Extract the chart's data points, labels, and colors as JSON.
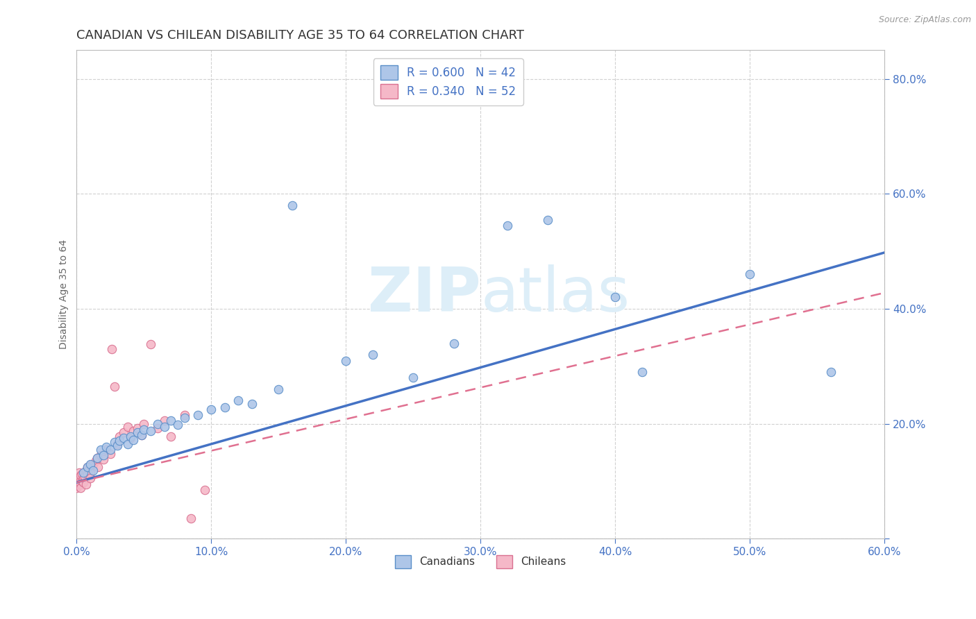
{
  "title": "CANADIAN VS CHILEAN DISABILITY AGE 35 TO 64 CORRELATION CHART",
  "source_text": "Source: ZipAtlas.com",
  "ylabel": "Disability Age 35 to 64",
  "xlim": [
    0.0,
    0.6
  ],
  "ylim": [
    0.0,
    0.85
  ],
  "xticks": [
    0.0,
    0.1,
    0.2,
    0.3,
    0.4,
    0.5,
    0.6
  ],
  "yticks": [
    0.0,
    0.2,
    0.4,
    0.6,
    0.8
  ],
  "canadian_color": "#aec6e8",
  "chilean_color": "#f5b8c8",
  "canadian_edge_color": "#5b8fc9",
  "chilean_edge_color": "#d97090",
  "canadian_line_color": "#4472c4",
  "chilean_line_color": "#e07090",
  "R_canadian": 0.6,
  "N_canadian": 42,
  "R_chilean": 0.34,
  "N_chilean": 52,
  "legend_label_canadian": "Canadians",
  "legend_label_chilean": "Chileans",
  "canadian_scatter": [
    [
      0.005,
      0.115
    ],
    [
      0.008,
      0.125
    ],
    [
      0.01,
      0.13
    ],
    [
      0.012,
      0.118
    ],
    [
      0.015,
      0.14
    ],
    [
      0.018,
      0.155
    ],
    [
      0.02,
      0.145
    ],
    [
      0.022,
      0.16
    ],
    [
      0.025,
      0.155
    ],
    [
      0.028,
      0.168
    ],
    [
      0.03,
      0.162
    ],
    [
      0.032,
      0.17
    ],
    [
      0.035,
      0.175
    ],
    [
      0.038,
      0.165
    ],
    [
      0.04,
      0.178
    ],
    [
      0.042,
      0.172
    ],
    [
      0.045,
      0.185
    ],
    [
      0.048,
      0.18
    ],
    [
      0.05,
      0.19
    ],
    [
      0.055,
      0.188
    ],
    [
      0.06,
      0.2
    ],
    [
      0.065,
      0.195
    ],
    [
      0.07,
      0.205
    ],
    [
      0.075,
      0.198
    ],
    [
      0.08,
      0.21
    ],
    [
      0.09,
      0.215
    ],
    [
      0.1,
      0.225
    ],
    [
      0.11,
      0.228
    ],
    [
      0.12,
      0.24
    ],
    [
      0.13,
      0.235
    ],
    [
      0.15,
      0.26
    ],
    [
      0.16,
      0.58
    ],
    [
      0.2,
      0.31
    ],
    [
      0.22,
      0.32
    ],
    [
      0.25,
      0.28
    ],
    [
      0.28,
      0.34
    ],
    [
      0.32,
      0.545
    ],
    [
      0.35,
      0.555
    ],
    [
      0.4,
      0.42
    ],
    [
      0.42,
      0.29
    ],
    [
      0.5,
      0.46
    ],
    [
      0.56,
      0.29
    ]
  ],
  "chilean_scatter": [
    [
      0.0,
      0.095
    ],
    [
      0.0,
      0.088
    ],
    [
      0.0,
      0.105
    ],
    [
      0.001,
      0.092
    ],
    [
      0.001,
      0.1
    ],
    [
      0.002,
      0.098
    ],
    [
      0.002,
      0.108
    ],
    [
      0.002,
      0.115
    ],
    [
      0.003,
      0.102
    ],
    [
      0.003,
      0.095
    ],
    [
      0.003,
      0.11
    ],
    [
      0.003,
      0.088
    ],
    [
      0.004,
      0.1
    ],
    [
      0.004,
      0.112
    ],
    [
      0.005,
      0.105
    ],
    [
      0.005,
      0.098
    ],
    [
      0.006,
      0.115
    ],
    [
      0.006,
      0.108
    ],
    [
      0.007,
      0.118
    ],
    [
      0.007,
      0.095
    ],
    [
      0.008,
      0.112
    ],
    [
      0.008,
      0.125
    ],
    [
      0.009,
      0.12
    ],
    [
      0.01,
      0.115
    ],
    [
      0.01,
      0.128
    ],
    [
      0.01,
      0.105
    ],
    [
      0.012,
      0.13
    ],
    [
      0.014,
      0.135
    ],
    [
      0.015,
      0.14
    ],
    [
      0.016,
      0.125
    ],
    [
      0.018,
      0.145
    ],
    [
      0.02,
      0.138
    ],
    [
      0.022,
      0.155
    ],
    [
      0.025,
      0.148
    ],
    [
      0.026,
      0.33
    ],
    [
      0.028,
      0.265
    ],
    [
      0.03,
      0.165
    ],
    [
      0.032,
      0.178
    ],
    [
      0.035,
      0.185
    ],
    [
      0.038,
      0.195
    ],
    [
      0.04,
      0.175
    ],
    [
      0.042,
      0.188
    ],
    [
      0.045,
      0.192
    ],
    [
      0.048,
      0.18
    ],
    [
      0.05,
      0.2
    ],
    [
      0.055,
      0.338
    ],
    [
      0.06,
      0.192
    ],
    [
      0.065,
      0.205
    ],
    [
      0.07,
      0.178
    ],
    [
      0.08,
      0.215
    ],
    [
      0.085,
      0.035
    ],
    [
      0.095,
      0.085
    ]
  ],
  "background_color": "#ffffff",
  "grid_color": "#cccccc",
  "title_color": "#333333",
  "axis_label_color": "#666666",
  "tick_color": "#4472c4",
  "watermark_zip": "ZIP",
  "watermark_atlas": "atlas",
  "watermark_color": "#ddeef8",
  "title_fontsize": 13,
  "axis_label_fontsize": 10,
  "scatter_size": 80
}
